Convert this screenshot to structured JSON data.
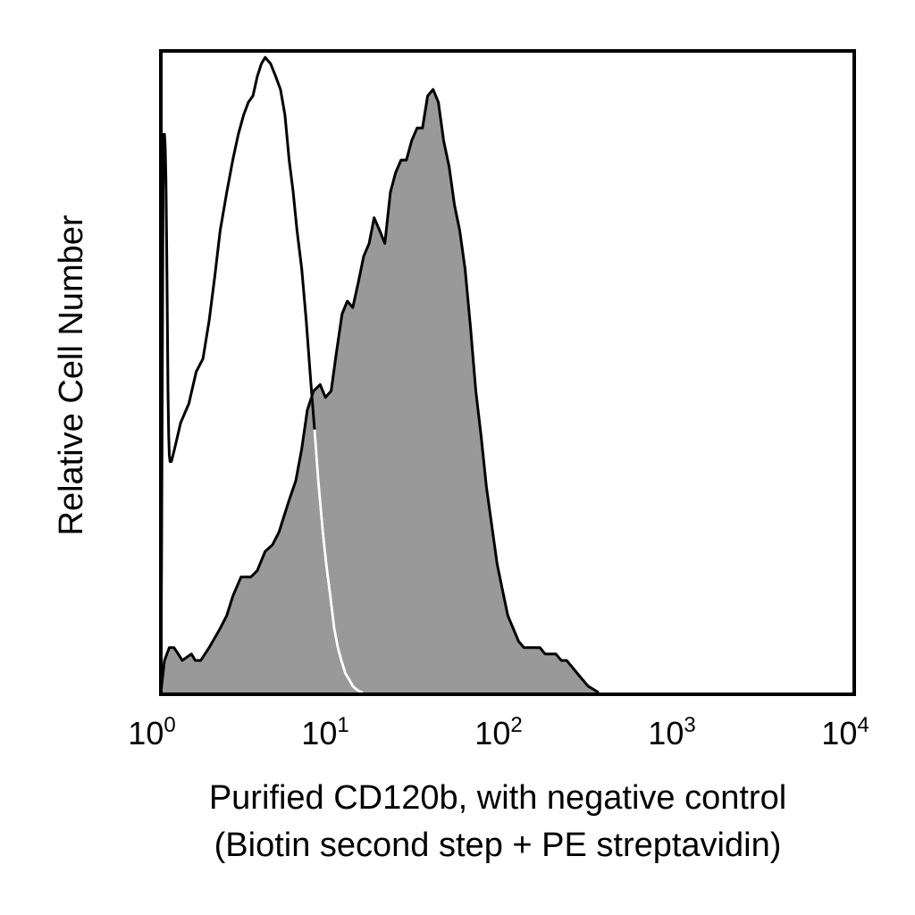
{
  "chart_data": {
    "type": "area",
    "xscale": "log",
    "xlim": [
      1,
      10000
    ],
    "ylim": [
      0,
      1
    ],
    "xlabel": [
      "Purified CD120b, with negative control",
      "(Biotin second step + PE streptavidin)"
    ],
    "ylabel": "Relative Cell Number",
    "x_ticks": [
      {
        "base": "10",
        "exp": "0",
        "value": 1
      },
      {
        "base": "10",
        "exp": "1",
        "value": 10
      },
      {
        "base": "10",
        "exp": "2",
        "value": 100
      },
      {
        "base": "10",
        "exp": "3",
        "value": 1000
      },
      {
        "base": "10",
        "exp": "4",
        "value": 10000
      }
    ],
    "grid": false,
    "series": [
      {
        "style": "filled",
        "fill": "#999999",
        "stroke": "#000000",
        "x": [
          1,
          1.05,
          1.12,
          1.19,
          1.26,
          1.33,
          1.5,
          1.58,
          1.7,
          1.9,
          2.2,
          2.4,
          2.6,
          2.9,
          3.3,
          3.6,
          4.0,
          4.4,
          4.8,
          5.5,
          6.0,
          6.5,
          7.0,
          7.6,
          8.3,
          8.9,
          9.6,
          10.3,
          11.1,
          11.9,
          12.8,
          13.8,
          14.8,
          15.9,
          17.0,
          18.3,
          19.6,
          21.1,
          22.6,
          24.3,
          26.1,
          28.0,
          30.1,
          32.3,
          34.6,
          37.2,
          39.9,
          42.8,
          46.0,
          49.4,
          53.0,
          56.9,
          61.1,
          65.6,
          70.4,
          75.6,
          81.1,
          87.1,
          93.5,
          100.4,
          107.8,
          115.7,
          124.2,
          133.3,
          143.1,
          153.6,
          164.9,
          177.1,
          190.1,
          204.1,
          219.1,
          235.2,
          252.5,
          271.0,
          291.0,
          312.4,
          335.3
        ],
        "y": [
          0,
          0.05,
          0.07,
          0.07,
          0.06,
          0.05,
          0.06,
          0.05,
          0.05,
          0.07,
          0.1,
          0.12,
          0.15,
          0.18,
          0.18,
          0.19,
          0.22,
          0.23,
          0.25,
          0.3,
          0.33,
          0.38,
          0.44,
          0.47,
          0.48,
          0.46,
          0.47,
          0.53,
          0.59,
          0.61,
          0.6,
          0.64,
          0.68,
          0.7,
          0.74,
          0.72,
          0.7,
          0.78,
          0.81,
          0.83,
          0.83,
          0.86,
          0.88,
          0.88,
          0.93,
          0.94,
          0.92,
          0.86,
          0.82,
          0.76,
          0.72,
          0.66,
          0.57,
          0.47,
          0.4,
          0.32,
          0.26,
          0.2,
          0.16,
          0.12,
          0.1,
          0.08,
          0.07,
          0.07,
          0.07,
          0.07,
          0.06,
          0.06,
          0.06,
          0.05,
          0.05,
          0.04,
          0.03,
          0.02,
          0.01,
          0.005,
          0
        ]
      },
      {
        "style": "outline",
        "stroke": "#000000",
        "x": [
          1,
          1.01,
          1.02,
          1.03,
          1.04,
          1.05,
          1.06,
          1.07,
          1.08,
          1.09,
          1.1,
          1.11,
          1.12,
          1.13,
          1.14,
          1.15,
          1.2,
          1.3,
          1.45,
          1.6,
          1.75,
          1.9,
          2.05,
          2.2,
          2.4,
          2.6,
          2.8,
          3.0,
          3.2,
          3.4,
          3.6,
          3.8,
          4.0,
          4.3,
          4.6,
          4.9,
          5.2,
          5.5,
          5.8,
          6.1,
          6.5,
          6.9,
          7.3,
          7.7,
          8.1,
          8.6,
          9.0,
          9.5,
          10.0,
          10.5,
          11.0,
          11.6,
          12.2,
          12.8,
          13.4,
          14.0,
          14.6
        ],
        "y": [
          0,
          0.2,
          0.52,
          0.78,
          0.87,
          0.87,
          0.85,
          0.8,
          0.7,
          0.58,
          0.47,
          0.4,
          0.37,
          0.36,
          0.36,
          0.36,
          0.38,
          0.42,
          0.45,
          0.5,
          0.52,
          0.58,
          0.65,
          0.72,
          0.78,
          0.83,
          0.87,
          0.9,
          0.92,
          0.93,
          0.96,
          0.98,
          0.99,
          0.98,
          0.96,
          0.94,
          0.9,
          0.83,
          0.78,
          0.72,
          0.66,
          0.58,
          0.49,
          0.41,
          0.33,
          0.25,
          0.2,
          0.15,
          0.1,
          0.07,
          0.05,
          0.03,
          0.02,
          0.01,
          0.005,
          0.002,
          0
        ]
      }
    ]
  }
}
